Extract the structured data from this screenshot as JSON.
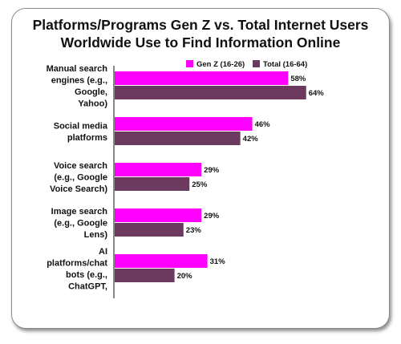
{
  "chart_data": {
    "type": "bar",
    "orientation": "horizontal",
    "title_lines": [
      "Platforms/Programs Gen Z vs. Total Internet Users",
      "Worldwide Use to Find Information Online"
    ],
    "categories": [
      [
        "Manual search",
        "engines (e.g.,",
        "Google,",
        "Yahoo)"
      ],
      [
        "Social media",
        "platforms"
      ],
      [
        "Voice search",
        "(e.g., Google",
        "Voice Search)"
      ],
      [
        "Image search",
        "(e.g., Google",
        "Lens)"
      ],
      [
        "AI",
        "platforms/chat",
        "bots (e.g.,",
        "ChatGPT,"
      ]
    ],
    "series": [
      {
        "name": "Gen Z (16-26)",
        "color": "#ff00ff",
        "values": [
          58,
          46,
          29,
          29,
          31
        ],
        "labels": [
          "58%",
          "46%",
          "29%",
          "29%",
          "31%"
        ]
      },
      {
        "name": "Total (16-64)",
        "color": "#6b3a5e",
        "values": [
          64,
          42,
          25,
          23,
          20
        ],
        "labels": [
          "64%",
          "42%",
          "25%",
          "23%",
          "20%"
        ]
      }
    ],
    "xlim": [
      0,
      100
    ],
    "legend_position": "top-right",
    "grid": false
  }
}
